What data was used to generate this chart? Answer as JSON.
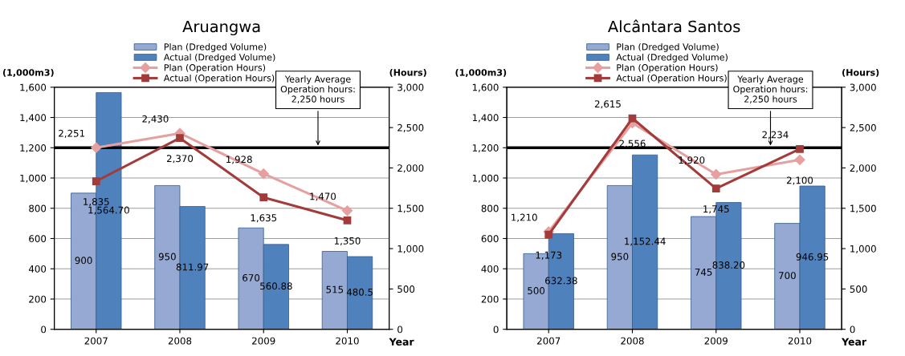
{
  "chart_data": [
    {
      "type": "bar",
      "title": "Aruangwa",
      "xlabel": "Year",
      "ylabel": "(1,000m3)",
      "y2label": "(Hours)",
      "categories": [
        "2007",
        "2008",
        "2009",
        "2010"
      ],
      "series": [
        {
          "name": "Plan (Dredged Volume)",
          "color": "#95a9d3",
          "values": [
            900,
            950,
            670,
            515
          ],
          "value_labels": [
            "900",
            "950",
            "670",
            "515"
          ]
        },
        {
          "name": "Actual (Dredged Volume)",
          "color": "#4f81bd",
          "values": [
            1564.7,
            811.97,
            560.88,
            480.5
          ],
          "value_labels": [
            "1,564.70",
            "811.97",
            "560.88",
            "480.5"
          ]
        },
        {
          "name": "Plan (Operation Hours)",
          "type": "line",
          "axis": "y2",
          "marker": "diamond",
          "color": "#e6a0a0",
          "values": [
            2251,
            2430,
            1928,
            1470
          ],
          "value_labels": [
            "2,251",
            "2,430",
            "1,928",
            "1,470"
          ]
        },
        {
          "name": "Actual (Operation Hours)",
          "type": "line",
          "axis": "y2",
          "marker": "square",
          "color": "#a33b3b",
          "values": [
            1835,
            2370,
            1635,
            1350
          ],
          "value_labels": [
            "1,835",
            "2,370",
            "1,635",
            "1,350"
          ]
        }
      ],
      "ylim": [
        0,
        1600
      ],
      "yticks": [
        0,
        200,
        {
          "value": 400,
          "label": "400"
        },
        {
          "value": 600,
          "label": "600"
        },
        {
          "value": 800,
          "label": "800"
        },
        {
          "value": 1000,
          "label": "1,000"
        },
        {
          "value": 1200,
          "label": "1,200"
        },
        {
          "value": 1400,
          "label": "1,400"
        },
        {
          "value": 1600,
          "label": "1,600"
        }
      ],
      "y2lim": [
        0,
        3000
      ],
      "y2ticks": [
        0,
        500,
        {
          "value": 1000,
          "label": "1,000"
        },
        {
          "value": 1500,
          "label": "1,500"
        },
        {
          "value": 2000,
          "label": "2,000"
        },
        {
          "value": 2500,
          "label": "2,500"
        },
        {
          "value": 3000,
          "label": "3,000"
        }
      ],
      "ref_lines": [
        {
          "axis": "y2",
          "value": 2250,
          "label": "Yearly Average\nOperation hours:\n2,250 hours",
          "color": "#000000"
        }
      ],
      "grid": "y",
      "legend": "top"
    },
    {
      "type": "bar",
      "title": "Alcântara Santos",
      "xlabel": "Year",
      "ylabel": "(1,000m3)",
      "y2label": "(Hours)",
      "categories": [
        "2007",
        "2008",
        "2009",
        "2010"
      ],
      "series": [
        {
          "name": "Plan (Dredged Volume)",
          "color": "#95a9d3",
          "values": [
            500,
            950,
            745,
            700
          ],
          "value_labels": [
            "500",
            "950",
            "745",
            "700"
          ]
        },
        {
          "name": "Actual (Dredged Volume)",
          "color": "#4f81bd",
          "values": [
            632.38,
            1152.44,
            838.2,
            946.95
          ],
          "value_labels": [
            "632.38",
            "1,152.44",
            "838.20",
            "946.95"
          ]
        },
        {
          "name": "Plan (Operation Hours)",
          "type": "line",
          "axis": "y2",
          "marker": "diamond",
          "color": "#e6a0a0",
          "values": [
            1210,
            2556,
            1920,
            2100
          ],
          "value_labels": [
            "1,210",
            "2,556",
            "1,920",
            "2,100"
          ]
        },
        {
          "name": "Actual (Operation Hours)",
          "type": "line",
          "axis": "y2",
          "marker": "square",
          "color": "#a33b3b",
          "values": [
            1173,
            2615,
            1745,
            2234
          ],
          "value_labels": [
            "1,173",
            "2,615",
            "1,745",
            "2,234"
          ]
        }
      ],
      "ylim": [
        0,
        1600
      ],
      "yticks": [
        0,
        200,
        {
          "value": 400,
          "label": "400"
        },
        {
          "value": 600,
          "label": "600"
        },
        {
          "value": 800,
          "label": "800"
        },
        {
          "value": 1000,
          "label": "1,000"
        },
        {
          "value": 1200,
          "label": "1,200"
        },
        {
          "value": 1400,
          "label": "1,400"
        },
        {
          "value": 1600,
          "label": "1,600"
        }
      ],
      "y2lim": [
        0,
        3000
      ],
      "y2ticks": [
        0,
        500,
        {
          "value": 1000,
          "label": "1,000"
        },
        {
          "value": 1500,
          "label": "1,500"
        },
        {
          "value": 2000,
          "label": "2,000"
        },
        {
          "value": 2500,
          "label": "2,500"
        },
        {
          "value": 3000,
          "label": "3,000"
        }
      ],
      "ref_lines": [
        {
          "axis": "y2",
          "value": 2250,
          "label": "Yearly Average\nOperation hours:\n2,250 hours",
          "color": "#000000"
        }
      ],
      "grid": "y",
      "legend": "top"
    }
  ]
}
